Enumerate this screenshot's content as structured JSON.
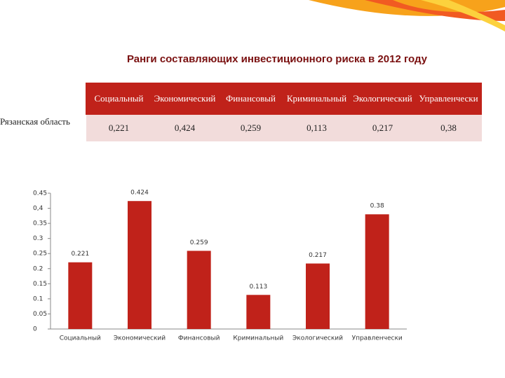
{
  "title": "Ранги составляющих инвестиционного риска в 2012 году",
  "table": {
    "header": [
      "Социальный",
      "Экономический",
      "Финансовый",
      "Криминальный",
      "Экологический",
      "Управленчески"
    ],
    "rows": [
      [
        "Рязанская область",
        "0,221",
        "0,424",
        "0,259",
        "0,113",
        "0,217",
        "0,38"
      ]
    ]
  },
  "chart_data": {
    "type": "bar",
    "categories": [
      "Социальный",
      "Экономический",
      "Финансовый",
      "Криминальный",
      "Экологический",
      "Управленчески"
    ],
    "values": [
      0.221,
      0.424,
      0.259,
      0.113,
      0.217,
      0.38
    ],
    "color": "#c0221a",
    "ylim": [
      0,
      0.45
    ],
    "yticks": [
      0,
      0.05,
      0.1,
      0.15,
      0.2,
      0.25,
      0.3,
      0.35,
      {
        "value": 0.4,
        "label": "0,4"
      },
      0.45
    ]
  }
}
